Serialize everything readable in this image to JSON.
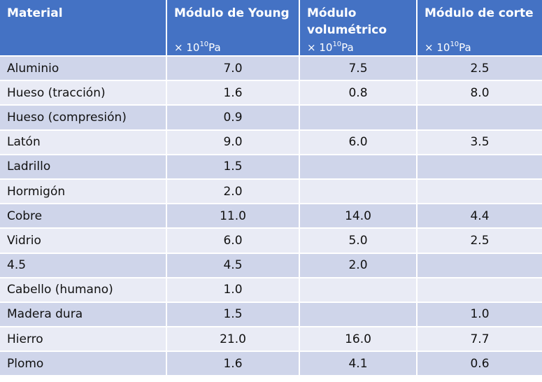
{
  "header": {
    "material": "Material",
    "young": "Módulo de Young",
    "volumetric": "Módulo volumétrico",
    "shear": "Módulo de corte",
    "unit_prefix": "× 10",
    "unit_exp": "10",
    "unit_suffix": "Pa"
  },
  "rows": [
    {
      "material": "Aluminio",
      "young": "7.0",
      "volumetric": "7.5",
      "shear": "2.5"
    },
    {
      "material": "Hueso (tracción)",
      "young": "1.6",
      "volumetric": "0.8",
      "shear": "8.0"
    },
    {
      "material": "Hueso (compresión)",
      "young": "0.9",
      "volumetric": "",
      "shear": ""
    },
    {
      "material": "Latón",
      "young": "9.0",
      "volumetric": "6.0",
      "shear": "3.5"
    },
    {
      "material": "Ladrillo",
      "young": "1.5",
      "volumetric": "",
      "shear": ""
    },
    {
      "material": "Hormigón",
      "young": "2.0",
      "volumetric": "",
      "shear": ""
    },
    {
      "material": "Cobre",
      "young": "11.0",
      "volumetric": "14.0",
      "shear": "4.4"
    },
    {
      "material": "Vidrio",
      "young": "6.0",
      "volumetric": "5.0",
      "shear": "2.5"
    },
    {
      "material": "4.5",
      "young": "4.5",
      "volumetric": "2.0",
      "shear": ""
    },
    {
      "material": "Cabello (humano)",
      "young": "1.0",
      "volumetric": "",
      "shear": ""
    },
    {
      "material": "Madera dura",
      "young": "1.5",
      "volumetric": "",
      "shear": "1.0"
    },
    {
      "material": "Hierro",
      "young": "21.0",
      "volumetric": "16.0",
      "shear": "7.7"
    },
    {
      "material": "Plomo",
      "young": "1.6",
      "volumetric": "4.1",
      "shear": "0.6"
    }
  ]
}
